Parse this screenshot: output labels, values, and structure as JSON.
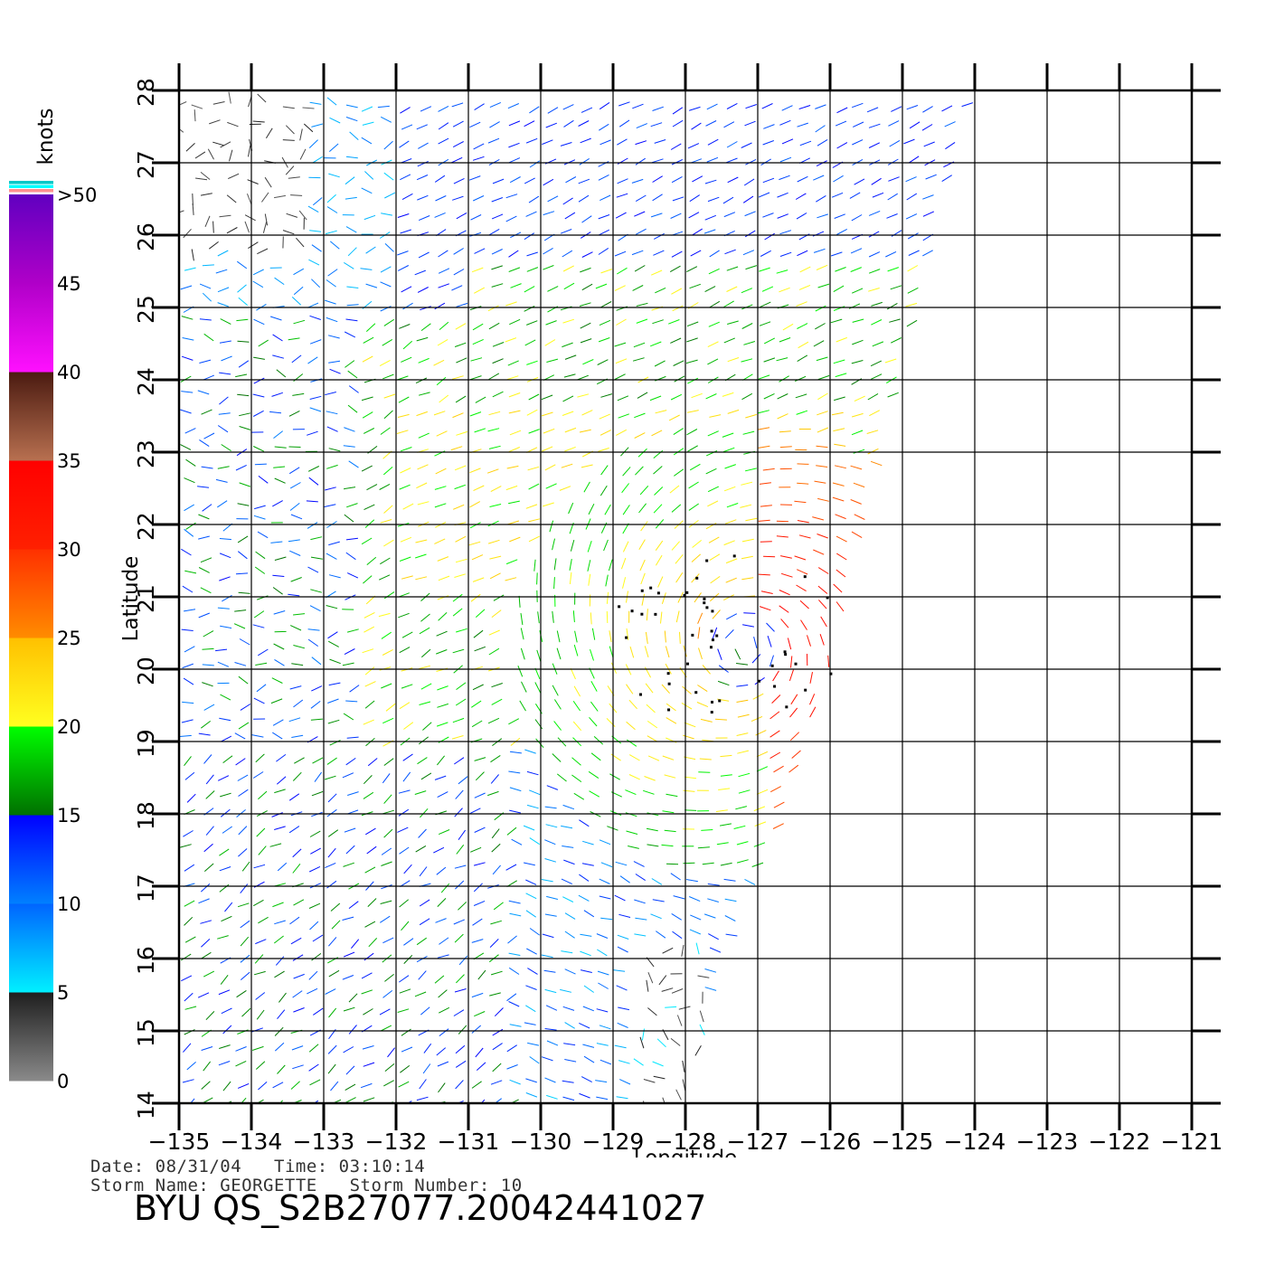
{
  "footer": {
    "date_label": "Date:",
    "date": "08/31/04",
    "time_label": "Time:",
    "time": "03:10:14",
    "storm_name_label": "Storm Name:",
    "storm_name": "GEORGETTE",
    "storm_number_label": "Storm Number:",
    "storm_number": "10",
    "title": "BYU  QS_S2B27077.20042441027"
  },
  "chart_data": {
    "type": "vector-field",
    "xlabel": "Longitude",
    "ylabel": "Latitude",
    "xlim": [
      -135,
      -121
    ],
    "ylim": [
      14,
      28
    ],
    "x_ticks": [
      -135,
      -134,
      -133,
      -132,
      -131,
      -130,
      -129,
      -128,
      -127,
      -126,
      -125,
      -124,
      -123,
      -122,
      -121
    ],
    "y_ticks": [
      14,
      15,
      16,
      17,
      18,
      19,
      20,
      21,
      22,
      23,
      24,
      25,
      26,
      27,
      28
    ],
    "grid": true,
    "swath_corners": [
      [
        -135,
        14
      ],
      [
        -128,
        14
      ],
      [
        -126,
        20
      ],
      [
        -124,
        28
      ],
      [
        -135,
        28
      ]
    ],
    "colorbar": {
      "unit": "knots",
      "tick_labels": [
        "0",
        "5",
        "10",
        "15",
        "20",
        "25",
        "30",
        "35",
        "40",
        "45",
        ">50"
      ],
      "segments": [
        {
          "from": 0,
          "to": 5,
          "colors": [
            "#8a8a8a",
            "#1e1e1e"
          ]
        },
        {
          "from": 5,
          "to": 10,
          "colors": [
            "#00f0ff",
            "#0064ff"
          ]
        },
        {
          "from": 10,
          "to": 15,
          "colors": [
            "#0080ff",
            "#0000ff"
          ]
        },
        {
          "from": 15,
          "to": 20,
          "colors": [
            "#007000",
            "#00ff00"
          ]
        },
        {
          "from": 20,
          "to": 25,
          "colors": [
            "#ffff20",
            "#ffc000"
          ]
        },
        {
          "from": 25,
          "to": 30,
          "colors": [
            "#ff8c00",
            "#ff3000"
          ]
        },
        {
          "from": 30,
          "to": 35,
          "colors": [
            "#ff2000",
            "#ff0000"
          ]
        },
        {
          "from": 35,
          "to": 40,
          "colors": [
            "#b87050",
            "#4a1a10"
          ]
        },
        {
          "from": 40,
          "to": 45,
          "colors": [
            "#ff10ff",
            "#b000c8"
          ]
        },
        {
          "from": 45,
          "to": 50,
          "colors": [
            "#b000c8",
            "#6000c0"
          ]
        }
      ],
      "over_marker_colors": [
        "#00c8c8",
        "#00ffff",
        "#ff9090"
      ]
    },
    "storm_center": {
      "lon": -127.2,
      "lat": 20.3,
      "max_speed_knots": 33
    },
    "wind_field_regions": [
      {
        "description": "calm NW corner",
        "speed_knots": 3
      },
      {
        "description": "calm south near -128",
        "speed_knots": 3
      },
      {
        "description": "northeast easterlies",
        "speed_knots": 13
      },
      {
        "description": "central yellow band around 21-23N",
        "speed_knots": 22
      },
      {
        "description": "red core east of storm",
        "speed_knots": 32
      }
    ]
  }
}
